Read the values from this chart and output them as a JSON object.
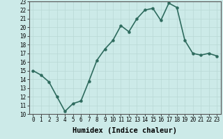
{
  "x": [
    0,
    1,
    2,
    3,
    4,
    5,
    6,
    7,
    8,
    9,
    10,
    11,
    12,
    13,
    14,
    15,
    16,
    17,
    18,
    19,
    20,
    21,
    22,
    23
  ],
  "y": [
    15,
    14.5,
    13.7,
    12,
    10.3,
    11.2,
    11.5,
    13.8,
    16.2,
    17.5,
    18.5,
    20.2,
    19.5,
    21,
    22,
    22.2,
    20.8,
    22.8,
    22.3,
    18.5,
    17,
    16.8,
    17,
    16.7
  ],
  "line_color": "#2e6b5e",
  "marker": "o",
  "marker_size": 2.2,
  "bg_color": "#cceae8",
  "grid_color": "#b8d8d5",
  "xlabel": "Humidex (Indice chaleur)",
  "xlim": [
    -0.5,
    23.5
  ],
  "ylim": [
    10,
    23
  ],
  "yticks": [
    10,
    11,
    12,
    13,
    14,
    15,
    16,
    17,
    18,
    19,
    20,
    21,
    22,
    23
  ],
  "xticks": [
    0,
    1,
    2,
    3,
    4,
    5,
    6,
    7,
    8,
    9,
    10,
    11,
    12,
    13,
    14,
    15,
    16,
    17,
    18,
    19,
    20,
    21,
    22,
    23
  ],
  "tick_fontsize": 5.5,
  "xlabel_fontsize": 7.5,
  "linewidth": 1.2
}
